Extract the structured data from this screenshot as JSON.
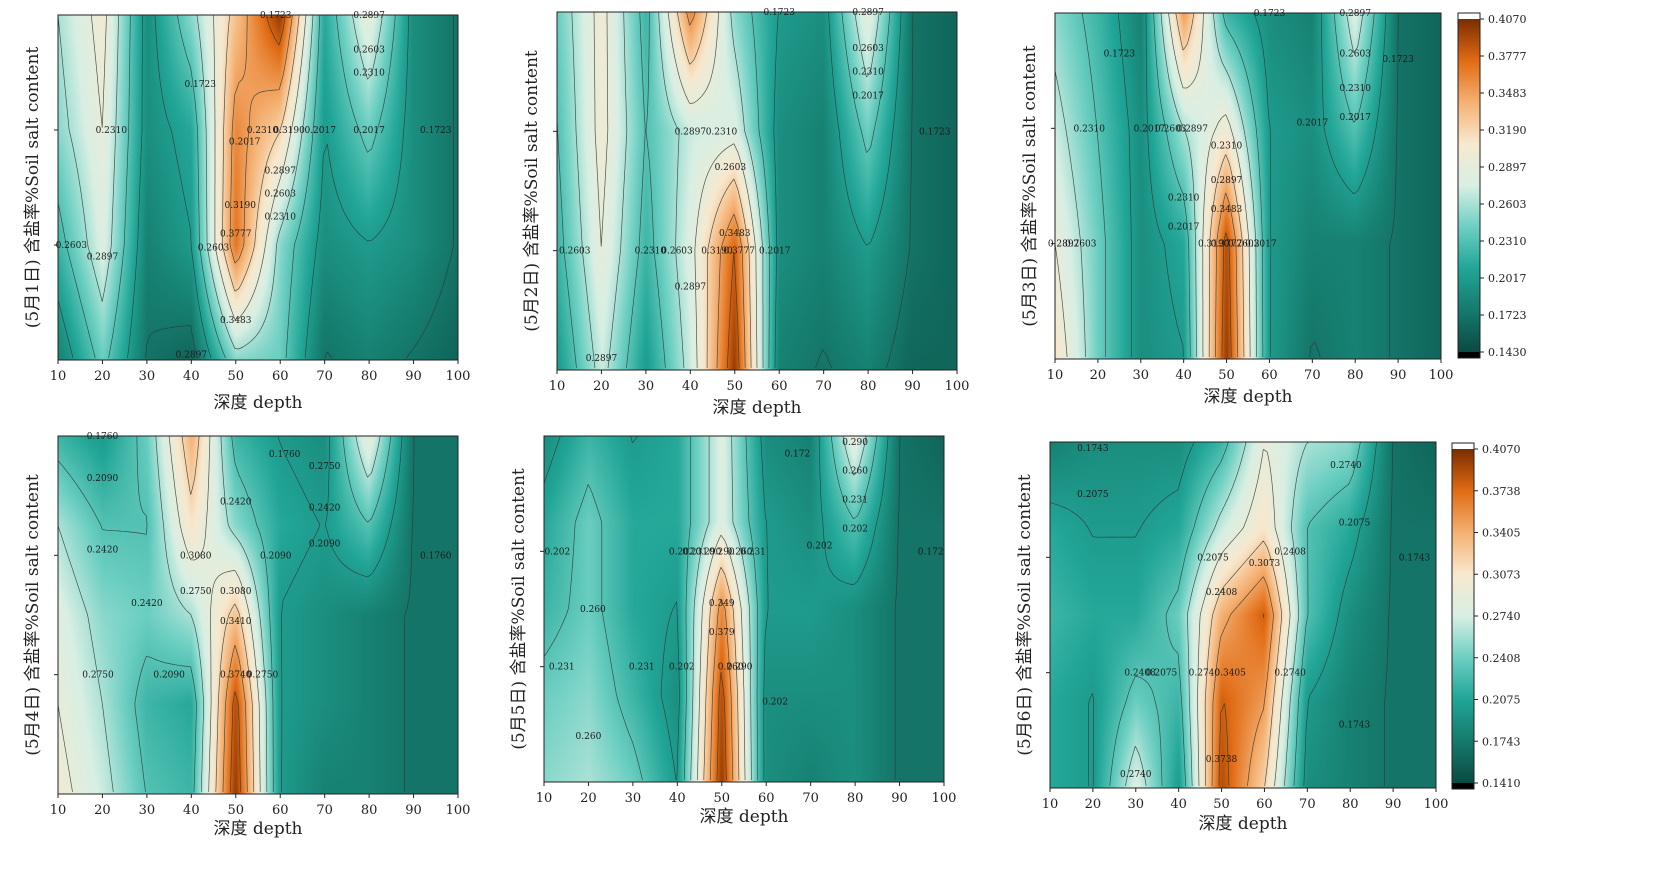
{
  "chart_data": [
    {
      "type": "heatmap",
      "ylabel": "(5月1日) 含盐率%Soil salt content",
      "xlabel": "深度 depth",
      "x_ticks": [
        "10",
        "20",
        "30",
        "40",
        "50",
        "60",
        "70",
        "80",
        "90",
        "100"
      ],
      "xlim": [
        10,
        100
      ],
      "ylim": [
        0,
        3
      ],
      "x": [
        10,
        20,
        30,
        40,
        50,
        60,
        70,
        80,
        90,
        100
      ],
      "z": [
        [
          0.18,
          0.24,
          0.17,
          0.16,
          0.25,
          0.24,
          0.17,
          0.18,
          0.17,
          0.16
        ],
        [
          0.22,
          0.28,
          0.18,
          0.2,
          0.37,
          0.25,
          0.19,
          0.2,
          0.19,
          0.17
        ],
        [
          0.25,
          0.29,
          0.19,
          0.21,
          0.36,
          0.32,
          0.2,
          0.24,
          0.19,
          0.17
        ],
        [
          0.26,
          0.3,
          0.19,
          0.25,
          0.33,
          0.4,
          0.21,
          0.29,
          0.19,
          0.17
        ]
      ],
      "contour_labels": [
        {
          "text": "0.1723",
          "x": 59,
          "y": 3.0
        },
        {
          "text": "0.2897",
          "x": 80,
          "y": 3.0
        },
        {
          "text": "0.1723",
          "x": 42,
          "y": 2.4
        },
        {
          "text": "0.2603",
          "x": 80,
          "y": 2.7
        },
        {
          "text": "0.2310",
          "x": 80,
          "y": 2.5
        },
        {
          "text": "0.2310",
          "x": 22,
          "y": 2.0
        },
        {
          "text": "0.2310",
          "x": 56,
          "y": 2.0
        },
        {
          "text": "0.3190",
          "x": 62,
          "y": 2.0
        },
        {
          "text": "0.2017",
          "x": 69,
          "y": 2.0
        },
        {
          "text": "0.2017",
          "x": 80,
          "y": 2.0
        },
        {
          "text": "0.1723",
          "x": 95,
          "y": 2.0
        },
        {
          "text": "0.2017",
          "x": 52,
          "y": 1.9
        },
        {
          "text": "0.2897",
          "x": 60,
          "y": 1.65
        },
        {
          "text": "0.2603",
          "x": 60,
          "y": 1.45
        },
        {
          "text": "0.3190",
          "x": 51,
          "y": 1.35
        },
        {
          "text": "0.2310",
          "x": 60,
          "y": 1.25
        },
        {
          "text": "0.3777",
          "x": 50,
          "y": 1.1
        },
        {
          "text": "0.2603",
          "x": 45,
          "y": 0.98
        },
        {
          "text": "0.2603",
          "x": 13,
          "y": 1.0
        },
        {
          "text": "0.2897",
          "x": 20,
          "y": 0.9
        },
        {
          "text": "0.3483",
          "x": 50,
          "y": 0.35
        },
        {
          "text": "0.2897",
          "x": 40,
          "y": 0.05
        }
      ]
    },
    {
      "type": "heatmap",
      "ylabel": "(5月2日) 含盐率%Soil salt content",
      "xlabel": "深度 depth",
      "x_ticks": [
        "10",
        "20",
        "30",
        "40",
        "50",
        "60",
        "70",
        "80",
        "90",
        "100"
      ],
      "xlim": [
        10,
        100
      ],
      "ylim": [
        0,
        3
      ],
      "x": [
        10,
        20,
        30,
        40,
        50,
        60,
        70,
        80,
        90,
        100
      ],
      "z": [
        [
          0.2,
          0.27,
          0.2,
          0.27,
          0.4,
          0.18,
          0.17,
          0.18,
          0.16,
          0.16
        ],
        [
          0.22,
          0.29,
          0.22,
          0.28,
          0.38,
          0.19,
          0.18,
          0.2,
          0.17,
          0.16
        ],
        [
          0.23,
          0.3,
          0.23,
          0.27,
          0.28,
          0.19,
          0.18,
          0.24,
          0.17,
          0.16
        ],
        [
          0.24,
          0.3,
          0.22,
          0.36,
          0.25,
          0.2,
          0.19,
          0.29,
          0.17,
          0.16
        ]
      ],
      "contour_labels": [
        {
          "text": "0.1723",
          "x": 60,
          "y": 3.0
        },
        {
          "text": "0.2897",
          "x": 80,
          "y": 3.0
        },
        {
          "text": "0.2603",
          "x": 80,
          "y": 2.7
        },
        {
          "text": "0.2310",
          "x": 80,
          "y": 2.5
        },
        {
          "text": "0.2017",
          "x": 80,
          "y": 2.3
        },
        {
          "text": "0.1723",
          "x": 95,
          "y": 2.0
        },
        {
          "text": "0.2897",
          "x": 40,
          "y": 2.0
        },
        {
          "text": "0.2310",
          "x": 47,
          "y": 2.0
        },
        {
          "text": "0.2603",
          "x": 49,
          "y": 1.7
        },
        {
          "text": "0.3483",
          "x": 50,
          "y": 1.15
        },
        {
          "text": "0.2603",
          "x": 14,
          "y": 1.0
        },
        {
          "text": "0.2310",
          "x": 31,
          "y": 1.0
        },
        {
          "text": "0.2603",
          "x": 37,
          "y": 1.0
        },
        {
          "text": "0.3190",
          "x": 46,
          "y": 1.0
        },
        {
          "text": "0.3777",
          "x": 51,
          "y": 1.0
        },
        {
          "text": "0.2017",
          "x": 59,
          "y": 1.0
        },
        {
          "text": "0.2897",
          "x": 40,
          "y": 0.7
        },
        {
          "text": "0.2897",
          "x": 20,
          "y": 0.1
        }
      ]
    },
    {
      "type": "heatmap",
      "ylabel": "(5月3日) 含盐率%Soil salt content",
      "xlabel": "深度 depth",
      "x_ticks": [
        "10",
        "20",
        "30",
        "40",
        "50",
        "60",
        "70",
        "80",
        "90",
        "100"
      ],
      "xlim": [
        10,
        100
      ],
      "ylim": [
        0,
        3
      ],
      "x": [
        10,
        20,
        30,
        40,
        50,
        60,
        70,
        80,
        90,
        100
      ],
      "z": [
        [
          0.31,
          0.24,
          0.19,
          0.2,
          0.4,
          0.2,
          0.17,
          0.18,
          0.17,
          0.16
        ],
        [
          0.29,
          0.24,
          0.19,
          0.21,
          0.39,
          0.2,
          0.18,
          0.18,
          0.17,
          0.16
        ],
        [
          0.27,
          0.23,
          0.19,
          0.26,
          0.3,
          0.2,
          0.19,
          0.23,
          0.17,
          0.16
        ],
        [
          0.25,
          0.22,
          0.18,
          0.35,
          0.22,
          0.19,
          0.18,
          0.28,
          0.17,
          0.16
        ]
      ],
      "contour_labels": [
        {
          "text": "0.1723",
          "x": 25,
          "y": 2.65
        },
        {
          "text": "0.1723",
          "x": 60,
          "y": 3.0
        },
        {
          "text": "0.2897",
          "x": 80,
          "y": 3.0
        },
        {
          "text": "0.2603",
          "x": 80,
          "y": 2.65
        },
        {
          "text": "0.2310",
          "x": 80,
          "y": 2.35
        },
        {
          "text": "0.2017",
          "x": 80,
          "y": 2.1
        },
        {
          "text": "0.1723",
          "x": 90,
          "y": 2.6
        },
        {
          "text": "0.2310",
          "x": 18,
          "y": 2.0
        },
        {
          "text": "0.2017",
          "x": 32,
          "y": 2.0
        },
        {
          "text": "0.2603",
          "x": 37,
          "y": 2.0
        },
        {
          "text": "0.2897",
          "x": 42,
          "y": 2.0
        },
        {
          "text": "0.2017",
          "x": 70,
          "y": 2.05
        },
        {
          "text": "0.2310",
          "x": 50,
          "y": 1.85
        },
        {
          "text": "0.2897",
          "x": 50,
          "y": 1.55
        },
        {
          "text": "0.2310",
          "x": 40,
          "y": 1.4
        },
        {
          "text": "0.3483",
          "x": 50,
          "y": 1.3
        },
        {
          "text": "0.2017",
          "x": 40,
          "y": 1.15
        },
        {
          "text": "0.2897",
          "x": 12,
          "y": 1.0
        },
        {
          "text": "0.2603",
          "x": 16,
          "y": 1.0
        },
        {
          "text": "0.3190",
          "x": 47,
          "y": 1.0
        },
        {
          "text": "0.3777",
          "x": 50,
          "y": 1.0
        },
        {
          "text": "0.2603",
          "x": 54,
          "y": 1.0
        },
        {
          "text": "0.2017",
          "x": 58,
          "y": 1.0
        }
      ]
    },
    {
      "type": "heatmap",
      "ylabel": "(5月4日) 含盐率%Soil salt content",
      "xlabel": "深度 depth",
      "x_ticks": [
        "10",
        "20",
        "30",
        "40",
        "50",
        "60",
        "70",
        "80",
        "90",
        "100"
      ],
      "xlim": [
        10,
        100
      ],
      "ylim": [
        0,
        3
      ],
      "x": [
        10,
        20,
        30,
        40,
        50,
        60,
        70,
        80,
        90,
        100
      ],
      "z": [
        [
          0.3,
          0.27,
          0.23,
          0.22,
          0.4,
          0.2,
          0.18,
          0.18,
          0.17,
          0.17
        ],
        [
          0.29,
          0.26,
          0.22,
          0.21,
          0.39,
          0.2,
          0.19,
          0.18,
          0.17,
          0.17
        ],
        [
          0.28,
          0.25,
          0.24,
          0.26,
          0.33,
          0.2,
          0.19,
          0.18,
          0.17,
          0.17
        ],
        [
          0.26,
          0.23,
          0.23,
          0.31,
          0.25,
          0.21,
          0.2,
          0.23,
          0.17,
          0.17
        ],
        [
          0.22,
          0.2,
          0.24,
          0.34,
          0.22,
          0.2,
          0.19,
          0.29,
          0.17,
          0.17
        ]
      ],
      "contour_labels": [
        {
          "text": "0.1760",
          "x": 20,
          "y": 3.0
        },
        {
          "text": "0.2090",
          "x": 20,
          "y": 2.65
        },
        {
          "text": "0.1760",
          "x": 61,
          "y": 2.85
        },
        {
          "text": "0.2750",
          "x": 70,
          "y": 2.75
        },
        {
          "text": "0.2420",
          "x": 70,
          "y": 2.4
        },
        {
          "text": "0.2090",
          "x": 70,
          "y": 2.1
        },
        {
          "text": "0.2420",
          "x": 20,
          "y": 2.05
        },
        {
          "text": "0.2420",
          "x": 50,
          "y": 2.45
        },
        {
          "text": "0.3080",
          "x": 41,
          "y": 2.0
        },
        {
          "text": "0.2090",
          "x": 59,
          "y": 2.0
        },
        {
          "text": "0.1760",
          "x": 95,
          "y": 2.0
        },
        {
          "text": "0.2750",
          "x": 41,
          "y": 1.7
        },
        {
          "text": "0.3080",
          "x": 50,
          "y": 1.7
        },
        {
          "text": "0.2420",
          "x": 30,
          "y": 1.6
        },
        {
          "text": "0.3410",
          "x": 50,
          "y": 1.45
        },
        {
          "text": "0.2750",
          "x": 19,
          "y": 1.0
        },
        {
          "text": "0.2090",
          "x": 35,
          "y": 1.0
        },
        {
          "text": "0.3740",
          "x": 50,
          "y": 1.0
        },
        {
          "text": "0.2750",
          "x": 56,
          "y": 1.0
        }
      ]
    },
    {
      "type": "heatmap",
      "ylabel": "(5月5日) 含盐率%Soil salt content",
      "xlabel": "深度 depth",
      "x_ticks": [
        "10",
        "20",
        "30",
        "40",
        "50",
        "60",
        "70",
        "80",
        "90",
        "100"
      ],
      "xlim": [
        10,
        100
      ],
      "ylim": [
        0,
        3
      ],
      "x": [
        10,
        20,
        30,
        40,
        50,
        60,
        70,
        80,
        90,
        100
      ],
      "z": [
        [
          0.25,
          0.26,
          0.24,
          0.2,
          0.4,
          0.19,
          0.18,
          0.19,
          0.17,
          0.17
        ],
        [
          0.24,
          0.25,
          0.22,
          0.19,
          0.39,
          0.19,
          0.19,
          0.19,
          0.17,
          0.17
        ],
        [
          0.22,
          0.24,
          0.21,
          0.2,
          0.36,
          0.2,
          0.2,
          0.19,
          0.17,
          0.17
        ],
        [
          0.21,
          0.24,
          0.21,
          0.21,
          0.28,
          0.2,
          0.19,
          0.23,
          0.17,
          0.17
        ],
        [
          0.19,
          0.22,
          0.2,
          0.21,
          0.28,
          0.19,
          0.18,
          0.29,
          0.17,
          0.16
        ]
      ],
      "contour_labels": [
        {
          "text": "0.172",
          "x": 67,
          "y": 2.85
        },
        {
          "text": "0.290",
          "x": 80,
          "y": 2.95
        },
        {
          "text": "0.260",
          "x": 80,
          "y": 2.7
        },
        {
          "text": "0.231",
          "x": 80,
          "y": 2.45
        },
        {
          "text": "0.202",
          "x": 80,
          "y": 2.2
        },
        {
          "text": "0.202",
          "x": 13,
          "y": 2.0
        },
        {
          "text": "0.202",
          "x": 41,
          "y": 2.0
        },
        {
          "text": "0.231",
          "x": 44,
          "y": 2.0
        },
        {
          "text": "0.290",
          "x": 47,
          "y": 2.0
        },
        {
          "text": "0.290",
          "x": 50,
          "y": 2.0
        },
        {
          "text": "0.260",
          "x": 54,
          "y": 2.0
        },
        {
          "text": "0.231",
          "x": 57,
          "y": 2.0
        },
        {
          "text": "0.202",
          "x": 72,
          "y": 2.05
        },
        {
          "text": "0.172",
          "x": 97,
          "y": 2.0
        },
        {
          "text": "0.260",
          "x": 21,
          "y": 1.5
        },
        {
          "text": "0.349",
          "x": 50,
          "y": 1.55
        },
        {
          "text": "0.379",
          "x": 50,
          "y": 1.3
        },
        {
          "text": "0.231",
          "x": 14,
          "y": 1.0
        },
        {
          "text": "0.231",
          "x": 32,
          "y": 1.0
        },
        {
          "text": "0.202",
          "x": 41,
          "y": 1.0
        },
        {
          "text": "0.260",
          "x": 52,
          "y": 1.0
        },
        {
          "text": "0.290",
          "x": 54,
          "y": 1.0
        },
        {
          "text": "0.202",
          "x": 62,
          "y": 0.7
        },
        {
          "text": "0.260",
          "x": 20,
          "y": 0.4
        }
      ]
    },
    {
      "type": "heatmap",
      "ylabel": "(5月6日) 含盐率%Soil salt content",
      "xlabel": "深度 depth",
      "x_ticks": [
        "10",
        "20",
        "30",
        "40",
        "50",
        "60",
        "70",
        "80",
        "90",
        "100"
      ],
      "xlim": [
        10,
        100
      ],
      "ylim": [
        0,
        3
      ],
      "x": [
        10,
        20,
        30,
        40,
        50,
        60,
        70,
        80,
        90,
        100
      ],
      "z": [
        [
          0.21,
          0.2,
          0.28,
          0.2,
          0.39,
          0.32,
          0.19,
          0.18,
          0.17,
          0.17
        ],
        [
          0.21,
          0.2,
          0.24,
          0.22,
          0.38,
          0.35,
          0.2,
          0.18,
          0.17,
          0.17
        ],
        [
          0.22,
          0.21,
          0.21,
          0.24,
          0.34,
          0.38,
          0.23,
          0.19,
          0.17,
          0.17
        ],
        [
          0.21,
          0.2,
          0.2,
          0.21,
          0.27,
          0.31,
          0.23,
          0.21,
          0.17,
          0.17
        ],
        [
          0.18,
          0.19,
          0.19,
          0.19,
          0.22,
          0.29,
          0.26,
          0.25,
          0.17,
          0.16
        ]
      ],
      "contour_labels": [
        {
          "text": "0.1743",
          "x": 20,
          "y": 2.95
        },
        {
          "text": "0.2740",
          "x": 79,
          "y": 2.8
        },
        {
          "text": "0.2075",
          "x": 20,
          "y": 2.55
        },
        {
          "text": "0.2075",
          "x": 81,
          "y": 2.3
        },
        {
          "text": "0.2075",
          "x": 48,
          "y": 2.0
        },
        {
          "text": "0.3073",
          "x": 60,
          "y": 1.95
        },
        {
          "text": "0.2408",
          "x": 66,
          "y": 2.05
        },
        {
          "text": "0.1743",
          "x": 95,
          "y": 2.0
        },
        {
          "text": "0.2408",
          "x": 50,
          "y": 1.7
        },
        {
          "text": "0.2408",
          "x": 31,
          "y": 1.0
        },
        {
          "text": "0.2075",
          "x": 36,
          "y": 1.0
        },
        {
          "text": "0.2740",
          "x": 46,
          "y": 1.0
        },
        {
          "text": "0.3405",
          "x": 52,
          "y": 1.0
        },
        {
          "text": "0.2740",
          "x": 66,
          "y": 1.0
        },
        {
          "text": "0.1743",
          "x": 81,
          "y": 0.55
        },
        {
          "text": "0.3738",
          "x": 50,
          "y": 0.25
        },
        {
          "text": "0.2740",
          "x": 30,
          "y": 0.12
        }
      ]
    }
  ],
  "colorbars": [
    {
      "labels": [
        "0.4070",
        "0.3777",
        "0.3483",
        "0.3190",
        "0.2897",
        "0.2603",
        "0.2310",
        "0.2017",
        "0.1723",
        "0.1430"
      ],
      "min": 0.143,
      "max": 0.407
    },
    {
      "labels": [
        "0.4070",
        "0.3738",
        "0.3405",
        "0.3073",
        "0.2740",
        "0.2408",
        "0.2075",
        "0.1743",
        "0.1410"
      ],
      "min": 0.141,
      "max": 0.407
    }
  ],
  "colors": {
    "stops": [
      "#0b4a42",
      "#157a6c",
      "#21a596",
      "#6ccfc2",
      "#d8efe4",
      "#f7e9cf",
      "#f5b071",
      "#e06b14",
      "#7a2d00"
    ],
    "contour_line": "#2f3b36"
  }
}
